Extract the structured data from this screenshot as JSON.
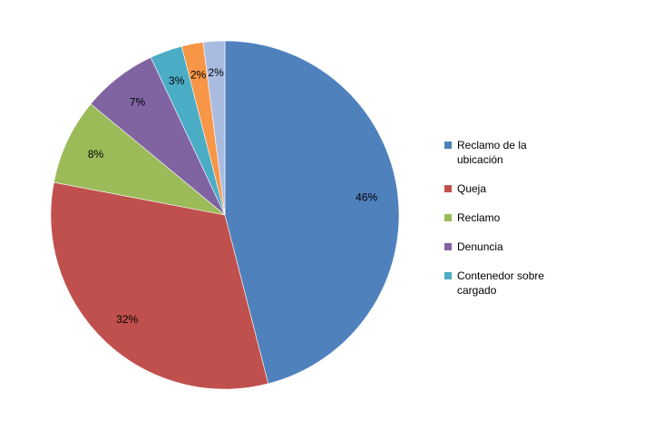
{
  "chart_data": {
    "type": "pie",
    "title": "",
    "legend_position": "right",
    "slices": [
      {
        "name": "Reclamo de la ubicación",
        "value": 46,
        "label": "46%",
        "color": "#4F81BD",
        "in_legend": true
      },
      {
        "name": "Queja",
        "value": 32,
        "label": "32%",
        "color": "#C0504D",
        "in_legend": true
      },
      {
        "name": "Reclamo",
        "value": 8,
        "label": "8%",
        "color": "#9BBB59",
        "in_legend": true
      },
      {
        "name": "Denuncia",
        "value": 7,
        "label": "7%",
        "color": "#8064A2",
        "in_legend": true
      },
      {
        "name": "Contenedor sobre cargado",
        "value": 3,
        "label": "3%",
        "color": "#4BACC6",
        "in_legend": true
      },
      {
        "name": "",
        "value": 2,
        "label": "2%",
        "color": "#F79646",
        "in_legend": false
      },
      {
        "name": "",
        "value": 2,
        "label": "2%",
        "color": "#A9BCE0",
        "in_legend": false
      }
    ]
  }
}
